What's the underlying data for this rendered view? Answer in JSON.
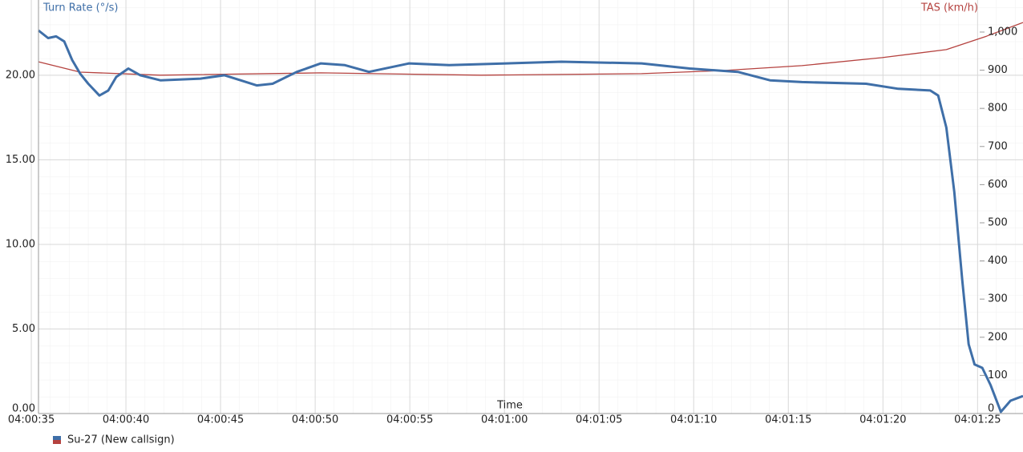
{
  "chart_data": {
    "type": "line",
    "ylabel": "Turn Rate (°/s)",
    "y2label": "TAS (km/h)",
    "xlabel": "Time",
    "legend": "Su-27 (New callsign)",
    "xlim": [
      35.38,
      87.4
    ],
    "ylim": [
      0,
      24.45
    ],
    "y2lim": [
      0,
      1084
    ],
    "xticks": [
      {
        "value": 35,
        "label": "04:00:35"
      },
      {
        "value": 40,
        "label": "04:00:40"
      },
      {
        "value": 45,
        "label": "04:00:45"
      },
      {
        "value": 50,
        "label": "04:00:50"
      },
      {
        "value": 55,
        "label": "04:00:55"
      },
      {
        "value": 60,
        "label": "04:01:00"
      },
      {
        "value": 65,
        "label": "04:01:05"
      },
      {
        "value": 70,
        "label": "04:01:10"
      },
      {
        "value": 75,
        "label": "04:01:15"
      },
      {
        "value": 80,
        "label": "04:01:20"
      },
      {
        "value": 85,
        "label": "04:01:25"
      }
    ],
    "yticks": [
      {
        "value": 0,
        "label": "0.00"
      },
      {
        "value": 5,
        "label": "5.00"
      },
      {
        "value": 10,
        "label": "10.00"
      },
      {
        "value": 15,
        "label": "15.00"
      },
      {
        "value": 20,
        "label": "20.00"
      }
    ],
    "y2ticks": [
      0,
      100,
      200,
      300,
      400,
      500,
      600,
      700,
      800,
      900,
      {
        "value": 1000,
        "label": "1,000"
      }
    ],
    "grid": true,
    "series": [
      {
        "color": "#3f6fa8",
        "axis": "y",
        "x": [
          35.38,
          35.89,
          36.31,
          36.74,
          37.16,
          37.58,
          38.01,
          38.6,
          39.07,
          39.49,
          40.13,
          40.76,
          41.82,
          43.94,
          45.21,
          46.06,
          46.91,
          47.75,
          49.03,
          50.3,
          51.57,
          52.84,
          54.96,
          57.08,
          63.01,
          67.25,
          69.79,
          72.33,
          74.03,
          75.72,
          79.11,
          80.81,
          82.5,
          82.92,
          83.35,
          83.77,
          84.19,
          84.53,
          84.84,
          85.25,
          85.68,
          86.23,
          86.74,
          87.4
        ],
        "values": [
          22.65,
          22.2,
          22.3,
          22.0,
          20.9,
          20.1,
          19.5,
          18.8,
          19.1,
          19.9,
          20.4,
          20.0,
          19.7,
          19.8,
          20.0,
          19.7,
          19.4,
          19.5,
          20.2,
          20.7,
          20.6,
          20.2,
          20.7,
          20.6,
          20.8,
          20.7,
          20.4,
          20.2,
          19.7,
          19.6,
          19.5,
          19.2,
          19.1,
          18.8,
          16.9,
          13.1,
          7.9,
          4.1,
          2.9,
          2.7,
          1.7,
          0.1,
          0.76,
          1.04
        ]
      },
      {
        "color": "#b5423f",
        "axis": "y2",
        "x": [
          35.38,
          37.58,
          41.82,
          50.3,
          58.77,
          67.25,
          71.48,
          75.72,
          79.96,
          83.35,
          85.47,
          87.4
        ],
        "values": [
          922,
          895,
          887,
          893,
          887,
          891,
          899,
          912,
          933,
          954,
          989,
          1025
        ]
      }
    ]
  }
}
